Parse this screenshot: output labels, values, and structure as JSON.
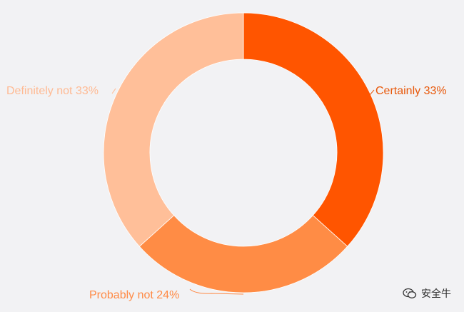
{
  "chart_data": {
    "type": "pie",
    "donut": true,
    "slices": [
      {
        "label": "Certainly 33%",
        "value": 33,
        "color": "#ff5500",
        "label_color": "#e8580a"
      },
      {
        "label": "Probably not 24%",
        "value": 24,
        "color": "#ff8c45",
        "label_color": "#ff8a45"
      },
      {
        "label": "Definitely not 33%",
        "value": 33,
        "color": "#ffbf99",
        "label_color": "#ffba93"
      }
    ],
    "legend": "none"
  },
  "watermark": {
    "text": "安全牛",
    "icon": "wechat-icon"
  }
}
